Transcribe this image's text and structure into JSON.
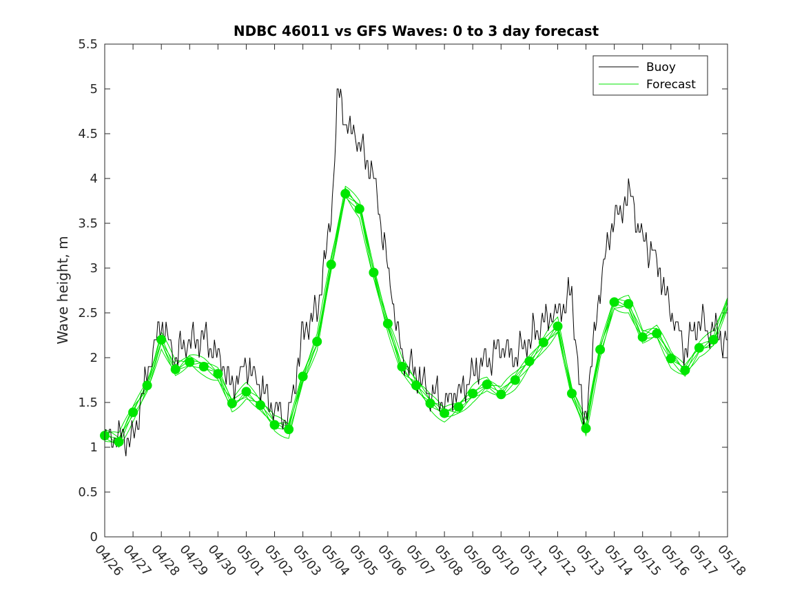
{
  "chart_data": {
    "type": "line",
    "title": "NDBC 46011 vs GFS Waves: 0 to 3 day forecast",
    "xlabel": "",
    "ylabel": "Wave height, m",
    "ylim": [
      0,
      5.5
    ],
    "yticks": [
      "0",
      "0.5",
      "1",
      "1.5",
      "2",
      "2.5",
      "3",
      "3.5",
      "4",
      "4.5",
      "5",
      "5.5"
    ],
    "x_dates": [
      "04/26",
      "04/27",
      "04/28",
      "04/29",
      "04/30",
      "05/01",
      "05/02",
      "05/03",
      "05/04",
      "05/05",
      "05/06",
      "05/07",
      "05/08",
      "05/09",
      "05/10",
      "05/11",
      "05/12",
      "05/13",
      "05/14",
      "05/15",
      "05/16",
      "05/17",
      "05/18"
    ],
    "legend": {
      "position": "top-right",
      "entries": [
        "Buoy",
        "Forecast"
      ]
    },
    "colors": {
      "buoy": "#000000",
      "forecast": "#00e600"
    },
    "series": [
      {
        "name": "Buoy",
        "x": [
          "04/26",
          "04/26 12:00",
          "04/27",
          "04/27 12:00",
          "04/28",
          "04/28 12:00",
          "04/29",
          "04/29 12:00",
          "04/30",
          "04/30 12:00",
          "05/01",
          "05/01 12:00",
          "05/02",
          "05/02 12:00",
          "05/03",
          "05/03 12:00",
          "05/04",
          "05/04 06:00",
          "05/04 12:00",
          "05/05",
          "05/05 12:00",
          "05/06",
          "05/06 12:00",
          "05/07",
          "05/07 12:00",
          "05/08",
          "05/08 12:00",
          "05/09",
          "05/09 12:00",
          "05/10",
          "05/10 12:00",
          "05/11",
          "05/11 12:00",
          "05/12",
          "05/12 12:00",
          "05/12 22:00",
          "05/13 12:00",
          "05/14",
          "05/14 06:00",
          "05/14 12:00",
          "05/15",
          "05/15 12:00",
          "05/16",
          "05/16 12:00",
          "05/17",
          "05/17 12:00",
          "05/18"
        ],
        "values": [
          1.1,
          1.1,
          1.1,
          1.8,
          2.4,
          2.0,
          2.2,
          2.2,
          2.0,
          1.7,
          1.9,
          1.7,
          1.4,
          1.3,
          2.3,
          2.5,
          3.6,
          5.0,
          4.6,
          4.4,
          4.0,
          3.0,
          2.0,
          1.8,
          1.6,
          1.5,
          1.6,
          1.8,
          2.0,
          2.1,
          2.0,
          2.2,
          2.4,
          2.5,
          2.7,
          1.2,
          2.8,
          3.6,
          3.6,
          3.9,
          3.3,
          3.1,
          2.5,
          2.1,
          2.4,
          2.3,
          2.2
        ]
      },
      {
        "name": "Forecast",
        "x": [
          "04/26",
          "04/26 12:00",
          "04/27",
          "04/27 12:00",
          "04/28",
          "04/28 12:00",
          "04/29",
          "04/29 12:00",
          "04/30",
          "04/30 12:00",
          "05/01",
          "05/01 12:00",
          "05/02",
          "05/02 12:00",
          "05/03",
          "05/03 12:00",
          "05/04",
          "05/04 12:00",
          "05/05",
          "05/05 12:00",
          "05/06",
          "05/06 12:00",
          "05/07",
          "05/07 12:00",
          "05/08",
          "05/08 12:00",
          "05/09",
          "05/09 12:00",
          "05/10",
          "05/10 12:00",
          "05/11",
          "05/11 12:00",
          "05/12",
          "05/12 12:00",
          "05/13",
          "05/13 12:00",
          "05/14",
          "05/14 12:00",
          "05/15",
          "05/15 12:00",
          "05/16",
          "05/16 12:00",
          "05/17",
          "05/17 12:00",
          "05/18"
        ],
        "values": [
          1.13,
          1.06,
          1.39,
          1.69,
          2.2,
          1.87,
          1.95,
          1.9,
          1.82,
          1.49,
          1.62,
          1.47,
          1.25,
          1.2,
          1.79,
          2.18,
          3.04,
          3.83,
          3.66,
          2.95,
          2.38,
          1.9,
          1.69,
          1.49,
          1.38,
          1.45,
          1.6,
          1.7,
          1.59,
          1.75,
          1.96,
          2.17,
          2.35,
          1.6,
          1.21,
          2.09,
          2.62,
          2.6,
          2.23,
          2.27,
          1.99,
          1.86,
          2.11,
          2.2,
          2.6
        ]
      }
    ]
  }
}
